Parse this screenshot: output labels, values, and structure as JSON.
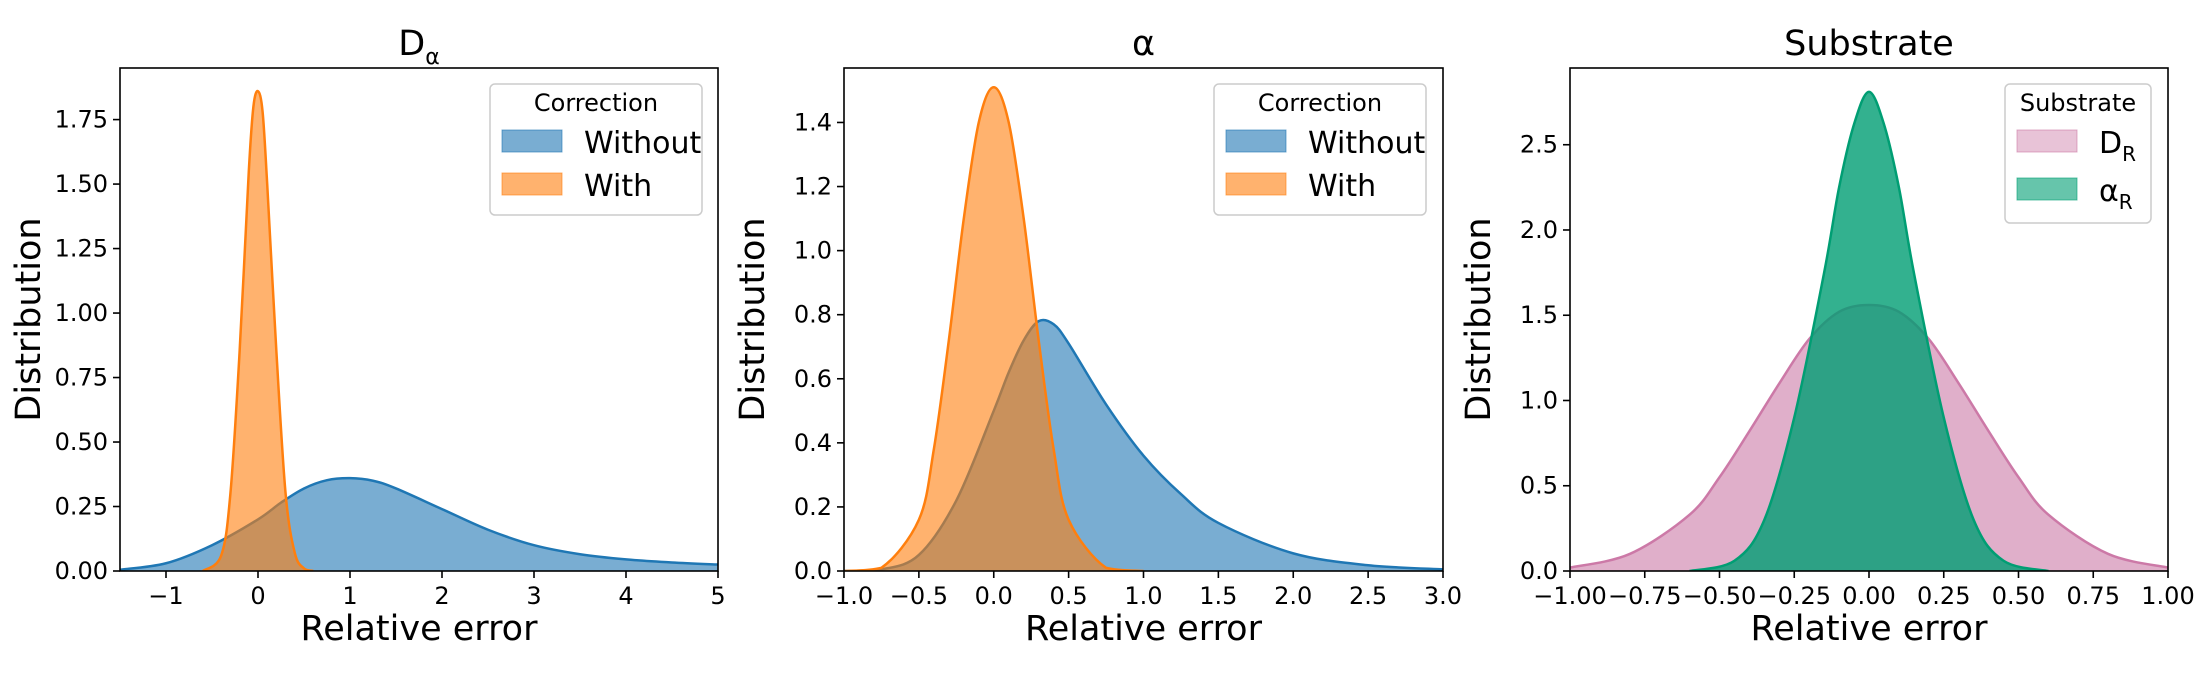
{
  "chart_data": [
    {
      "type": "area",
      "title_main": "D",
      "title_sub": "α",
      "xlabel": "Relative error",
      "ylabel": "Distribution",
      "xlim": [
        -1.5,
        5
      ],
      "ylim": [
        0,
        1.95
      ],
      "xticks": [
        -1,
        0,
        1,
        2,
        3,
        4,
        5
      ],
      "xtick_labels": [
        "−1",
        "0",
        "1",
        "2",
        "3",
        "4",
        "5"
      ],
      "yticks": [
        0,
        0.25,
        0.5,
        0.75,
        1.0,
        1.25,
        1.5,
        1.75
      ],
      "ytick_labels": [
        "0.00",
        "0.25",
        "0.50",
        "0.75",
        "1.00",
        "1.25",
        "1.50",
        "1.75"
      ],
      "legend": {
        "title": "Correction",
        "position": "top-right"
      },
      "series": [
        {
          "name": "Without",
          "color": "#1f77b4",
          "x": [
            -1.5,
            -1.0,
            -0.5,
            0.0,
            0.25,
            0.5,
            0.75,
            1.0,
            1.25,
            1.5,
            2.0,
            2.5,
            3.0,
            3.5,
            4.0,
            4.5,
            5.0
          ],
          "y": [
            0.005,
            0.03,
            0.1,
            0.2,
            0.265,
            0.32,
            0.352,
            0.36,
            0.35,
            0.32,
            0.24,
            0.16,
            0.1,
            0.065,
            0.045,
            0.033,
            0.025
          ]
        },
        {
          "name": "With",
          "color": "#ff7f0e",
          "x": [
            -0.6,
            -0.4,
            -0.3,
            -0.2,
            -0.1,
            -0.05,
            0.0,
            0.05,
            0.1,
            0.2,
            0.3,
            0.4,
            0.5,
            0.6
          ],
          "y": [
            0.0,
            0.06,
            0.3,
            0.85,
            1.55,
            1.8,
            1.86,
            1.78,
            1.5,
            0.85,
            0.3,
            0.07,
            0.01,
            0.0
          ]
        }
      ]
    },
    {
      "type": "area",
      "title_main": "α",
      "title_sub": "",
      "xlabel": "Relative error",
      "ylabel": "Distribution",
      "xlim": [
        -1.0,
        3.0
      ],
      "ylim": [
        0,
        1.57
      ],
      "xticks": [
        -1.0,
        -0.5,
        0.0,
        0.5,
        1.0,
        1.5,
        2.0,
        2.5,
        3.0
      ],
      "xtick_labels": [
        "−1.0",
        "−0.5",
        "0.0",
        "0.5",
        "1.0",
        "1.5",
        "2.0",
        "2.5",
        "3.0"
      ],
      "yticks": [
        0,
        0.2,
        0.4,
        0.6,
        0.8,
        1.0,
        1.2,
        1.4
      ],
      "ytick_labels": [
        "0.0",
        "0.2",
        "0.4",
        "0.6",
        "0.8",
        "1.0",
        "1.2",
        "1.4"
      ],
      "legend": {
        "title": "Correction",
        "position": "top-right"
      },
      "series": [
        {
          "name": "Without",
          "color": "#1f77b4",
          "x": [
            -1.0,
            -0.75,
            -0.5,
            -0.25,
            0.0,
            0.1,
            0.2,
            0.3,
            0.4,
            0.5,
            0.75,
            1.0,
            1.25,
            1.5,
            2.0,
            2.5,
            3.0
          ],
          "y": [
            0.0,
            0.005,
            0.05,
            0.22,
            0.5,
            0.62,
            0.72,
            0.78,
            0.77,
            0.71,
            0.52,
            0.36,
            0.24,
            0.15,
            0.055,
            0.018,
            0.005
          ]
        },
        {
          "name": "With",
          "color": "#ff7f0e",
          "x": [
            -1.0,
            -0.75,
            -0.5,
            -0.4,
            -0.3,
            -0.2,
            -0.1,
            0.0,
            0.1,
            0.2,
            0.3,
            0.4,
            0.5,
            0.75,
            1.0
          ],
          "y": [
            0.0,
            0.01,
            0.16,
            0.38,
            0.72,
            1.1,
            1.4,
            1.51,
            1.4,
            1.1,
            0.72,
            0.38,
            0.16,
            0.01,
            0.0
          ]
        }
      ]
    },
    {
      "type": "area",
      "title_main": "Substrate",
      "title_sub": "",
      "xlabel": "Relative error",
      "ylabel": "Distribution",
      "xlim": [
        -1.0,
        1.0
      ],
      "ylim": [
        0,
        2.95
      ],
      "xticks": [
        -1.0,
        -0.75,
        -0.5,
        -0.25,
        0.0,
        0.25,
        0.5,
        0.75,
        1.0
      ],
      "xtick_labels": [
        "−1.00",
        "−0.75",
        "−0.50",
        "−0.25",
        "0.00",
        "0.25",
        "0.50",
        "0.75",
        "1.00"
      ],
      "yticks": [
        0,
        0.5,
        1.0,
        1.5,
        2.0,
        2.5
      ],
      "ytick_labels": [
        "0.0",
        "0.5",
        "1.0",
        "1.5",
        "2.0",
        "2.5"
      ],
      "legend": {
        "title": "Substrate",
        "position": "top-right"
      },
      "series": [
        {
          "name_main": "D",
          "name_sub": "R",
          "color": "#cc79a7",
          "fill_opacity": 0.6,
          "x": [
            -1.0,
            -0.8,
            -0.6,
            -0.5,
            -0.4,
            -0.3,
            -0.2,
            -0.1,
            0.0,
            0.1,
            0.2,
            0.3,
            0.4,
            0.5,
            0.6,
            0.8,
            1.0
          ],
          "y": [
            0.02,
            0.1,
            0.33,
            0.55,
            0.82,
            1.1,
            1.36,
            1.52,
            1.56,
            1.52,
            1.36,
            1.1,
            0.82,
            0.55,
            0.33,
            0.1,
            0.02
          ]
        },
        {
          "name_main": "α",
          "name_sub": "R",
          "color": "#009e73",
          "fill_opacity": 0.8,
          "x": [
            -0.6,
            -0.45,
            -0.35,
            -0.25,
            -0.15,
            -0.1,
            -0.05,
            0.0,
            0.05,
            0.1,
            0.15,
            0.25,
            0.35,
            0.45,
            0.6
          ],
          "y": [
            0.0,
            0.06,
            0.3,
            0.9,
            1.75,
            2.25,
            2.62,
            2.81,
            2.62,
            2.25,
            1.75,
            0.9,
            0.3,
            0.06,
            0.0
          ]
        }
      ]
    }
  ]
}
